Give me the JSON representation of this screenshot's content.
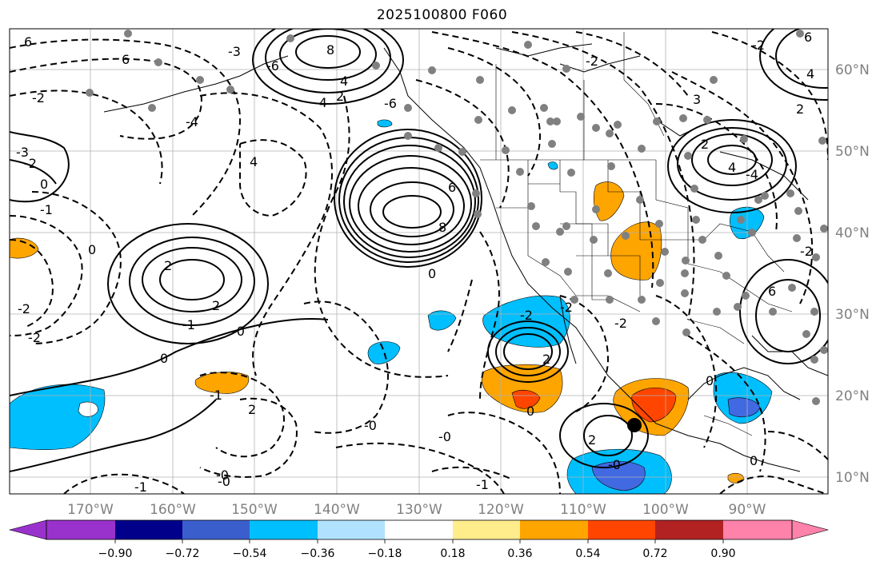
{
  "title": "2025100800 F060",
  "map": {
    "lon_labels": [
      "170°W",
      "160°W",
      "150°W",
      "140°W",
      "130°W",
      "120°W",
      "110°W",
      "100°W",
      "90°W"
    ],
    "lat_labels": [
      "60°N",
      "50°N",
      "40°N",
      "30°N",
      "20°N",
      "10°N"
    ],
    "contour_labels": [
      "6",
      "6",
      "-6",
      "8",
      "4",
      "-2",
      "2",
      "-4",
      "-4",
      "-2",
      "4",
      "6",
      "8",
      "-1",
      "0",
      "-2",
      "2",
      "2",
      "-1",
      "0",
      "-0",
      "-2",
      "-0",
      "-1",
      "-0",
      "2",
      "-3",
      "6",
      "4",
      "2",
      "3",
      "-2",
      "2",
      "-2",
      "0",
      "-2",
      "0",
      "2",
      "4",
      "6",
      "0",
      "-2",
      "2",
      "-6",
      "-1",
      "-2",
      "0",
      "-0",
      "-2",
      "-4",
      "-0",
      "-3",
      "-0",
      "-1",
      "0"
    ],
    "colors": {
      "light_blue": "#add8e6",
      "deep_sky_blue": "#00bfff",
      "royal_blue": "#4169e1",
      "orange": "#ffa500",
      "orange_red": "#ff4500"
    }
  },
  "colorbar": {
    "tick_labels": [
      "−0.90",
      "−0.72",
      "−0.54",
      "−0.36",
      "−0.18",
      "0.18",
      "0.36",
      "0.54",
      "0.72",
      "0.90"
    ],
    "colors": [
      "#9932cc",
      "#00008b",
      "#3a5fcd",
      "#00bfff",
      "#b0e2ff",
      "#ffffff",
      "#ffec8b",
      "#ffa500",
      "#ff4500",
      "#b22222",
      "#ff82ab"
    ]
  }
}
